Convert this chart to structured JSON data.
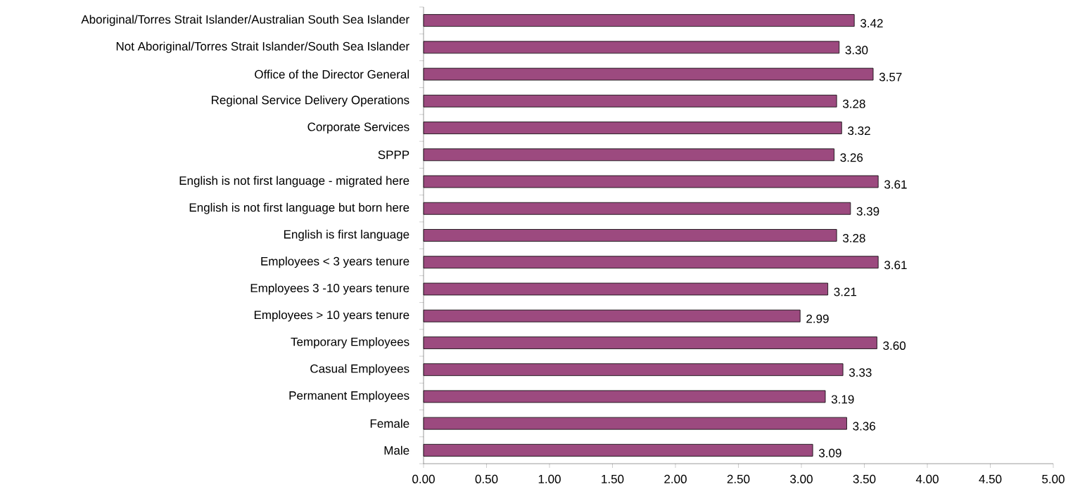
{
  "chart_data": {
    "type": "bar",
    "orientation": "horizontal",
    "color": "#9c4a7f",
    "categories": [
      "Aboriginal/Torres Strait Islander/Australian  South Sea Islander",
      "Not Aboriginal/Torres Strait Islander/South Sea Islander",
      "Office of the Director General",
      "Regional Service Delivery Operations",
      "Corporate Services",
      "SPPP",
      "English is not first language - migrated here",
      "English is not first language but born here",
      "English is first language",
      "Employees < 3 years tenure",
      "Employees 3 -10 years tenure",
      "Employees > 10 years tenure",
      "Temporary Employees",
      "Casual Employees",
      "Permanent Employees",
      "Female",
      "Male"
    ],
    "values": [
      3.42,
      3.3,
      3.57,
      3.28,
      3.32,
      3.26,
      3.61,
      3.39,
      3.28,
      3.61,
      3.21,
      2.99,
      3.6,
      3.33,
      3.19,
      3.36,
      3.09
    ],
    "value_labels": [
      "3.42",
      "3.30",
      "3.57",
      "3.28",
      "3.32",
      "3.26",
      "3.61",
      "3.39",
      "3.28",
      "3.61",
      "3.21",
      "2.99",
      "3.60",
      "3.33",
      "3.19",
      "3.36",
      "3.09"
    ],
    "xlim": [
      0,
      5
    ],
    "xticks": [
      {
        "value": 0,
        "label": "0.00"
      },
      {
        "value": 0.5,
        "label": "0.50"
      },
      {
        "value": 1,
        "label": "1.00"
      },
      {
        "value": 1.5,
        "label": "1.50"
      },
      {
        "value": 2,
        "label": "2.00"
      },
      {
        "value": 2.5,
        "label": "2.50"
      },
      {
        "value": 3,
        "label": "3.00"
      },
      {
        "value": 3.5,
        "label": "3.50"
      },
      {
        "value": 4,
        "label": "4.00"
      },
      {
        "value": 4.5,
        "label": "4.50"
      },
      {
        "value": 5,
        "label": "5.00"
      }
    ]
  }
}
